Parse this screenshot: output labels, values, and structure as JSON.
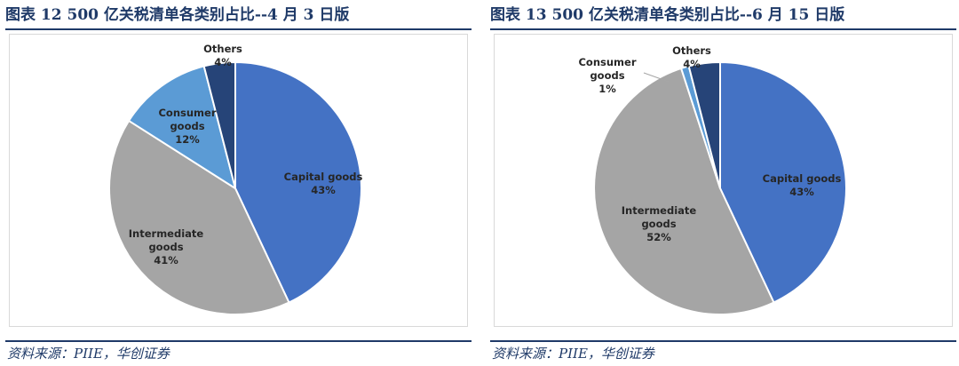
{
  "colors": {
    "capital": "#4472c4",
    "intermediate": "#a5a5a5",
    "consumer": "#5b9bd5",
    "others": "#264478",
    "title": "#1f3a68"
  },
  "chart_data": [
    {
      "type": "pie",
      "title": "图表 12   500 亿关税清单各类别占比--4 月 3 日版",
      "source": "资料来源：PIIE，华创证券",
      "slices": [
        {
          "label_lines": [
            "Capital goods"
          ],
          "value_label": "43%",
          "value": 43
        },
        {
          "label_lines": [
            "Intermediate",
            "goods"
          ],
          "value_label": "41%",
          "value": 41
        },
        {
          "label_lines": [
            "Consumer",
            "goods"
          ],
          "value_label": "12%",
          "value": 12
        },
        {
          "label_lines": [
            "Others"
          ],
          "value_label": "4%",
          "value": 4
        }
      ]
    },
    {
      "type": "pie",
      "title": "图表 13   500 亿关税清单各类别占比--6 月 15 日版",
      "source": "资料来源：PIIE，华创证券",
      "slices": [
        {
          "label_lines": [
            "Capital goods"
          ],
          "value_label": "43%",
          "value": 43
        },
        {
          "label_lines": [
            "Intermediate",
            "goods"
          ],
          "value_label": "52%",
          "value": 52
        },
        {
          "label_lines": [
            "Consumer",
            "goods"
          ],
          "value_label": "1%",
          "value": 1
        },
        {
          "label_lines": [
            "Others"
          ],
          "value_label": "4%",
          "value": 4
        }
      ]
    }
  ]
}
